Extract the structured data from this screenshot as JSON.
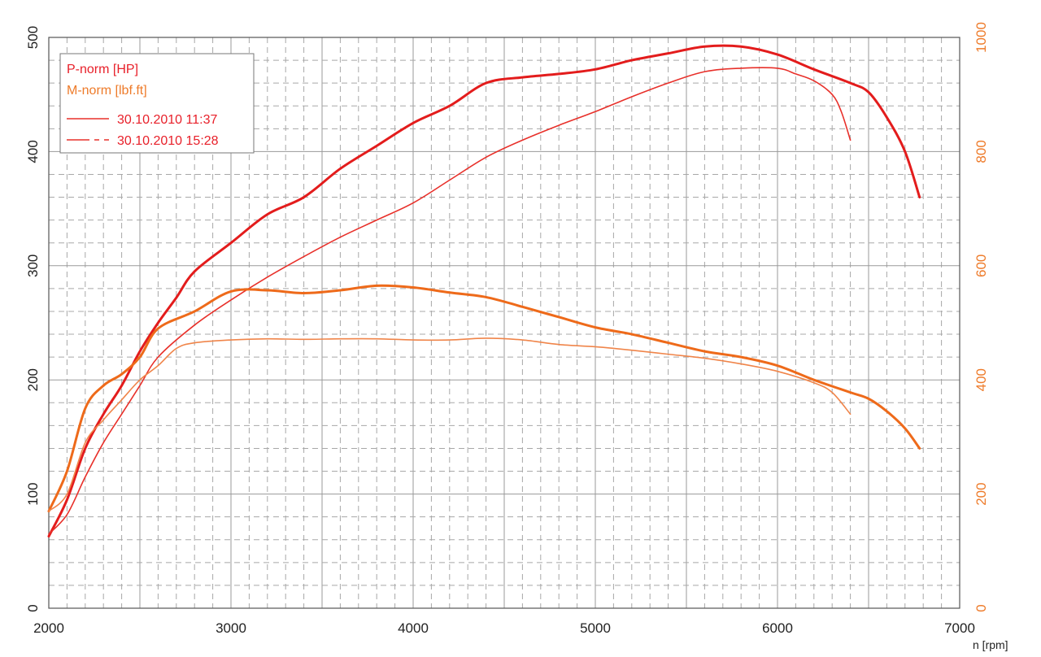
{
  "chart_data": {
    "type": "line",
    "x_unit_label": "n [rpm]",
    "xlim": [
      2000,
      7000
    ],
    "x_ticks": [
      2000,
      3000,
      4000,
      5000,
      6000,
      7000
    ],
    "y_left": {
      "ylim": [
        0,
        500
      ],
      "ticks": [
        0,
        100,
        200,
        300,
        400,
        500
      ]
    },
    "y_right": {
      "ylim": [
        0,
        1000
      ],
      "ticks": [
        0,
        200,
        400,
        600,
        800,
        1000
      ]
    },
    "grid": true,
    "legend": {
      "placement": "top-left",
      "quantities": [
        {
          "label": "P-norm [HP]",
          "color": "#e8202a"
        },
        {
          "label": "M-norm [lbf.ft]",
          "color": "#ee7b2a"
        }
      ],
      "runs": [
        {
          "label": "30.10.2010 11:37",
          "dash": "solid"
        },
        {
          "label": "30.10.2010 15:28",
          "dash": "dashed"
        }
      ]
    },
    "series": [
      {
        "quantity": "P-norm [HP]",
        "run": "30.10.2010 15:28",
        "axis": "left",
        "color": "#e31c1c",
        "width": 3,
        "points": [
          [
            2000,
            63
          ],
          [
            2100,
            95
          ],
          [
            2200,
            140
          ],
          [
            2300,
            170
          ],
          [
            2400,
            195
          ],
          [
            2500,
            225
          ],
          [
            2600,
            250
          ],
          [
            2700,
            272
          ],
          [
            2800,
            295
          ],
          [
            3000,
            320
          ],
          [
            3200,
            345
          ],
          [
            3400,
            360
          ],
          [
            3600,
            385
          ],
          [
            3800,
            405
          ],
          [
            4000,
            425
          ],
          [
            4200,
            440
          ],
          [
            4400,
            460
          ],
          [
            4600,
            465
          ],
          [
            4800,
            468
          ],
          [
            5000,
            472
          ],
          [
            5200,
            480
          ],
          [
            5400,
            486
          ],
          [
            5600,
            492
          ],
          [
            5800,
            492
          ],
          [
            6000,
            485
          ],
          [
            6200,
            472
          ],
          [
            6400,
            460
          ],
          [
            6500,
            452
          ],
          [
            6600,
            430
          ],
          [
            6700,
            400
          ],
          [
            6780,
            360
          ]
        ]
      },
      {
        "quantity": "P-norm [HP]",
        "run": "30.10.2010 11:37",
        "axis": "left",
        "color": "#e8302a",
        "width": 1.6,
        "points": [
          [
            2000,
            65
          ],
          [
            2100,
            82
          ],
          [
            2200,
            115
          ],
          [
            2300,
            145
          ],
          [
            2400,
            170
          ],
          [
            2500,
            195
          ],
          [
            2600,
            220
          ],
          [
            2800,
            248
          ],
          [
            3000,
            270
          ],
          [
            3200,
            290
          ],
          [
            3400,
            308
          ],
          [
            3600,
            325
          ],
          [
            3800,
            340
          ],
          [
            4000,
            355
          ],
          [
            4200,
            375
          ],
          [
            4400,
            395
          ],
          [
            4600,
            410
          ],
          [
            4800,
            423
          ],
          [
            5000,
            435
          ],
          [
            5200,
            448
          ],
          [
            5400,
            460
          ],
          [
            5600,
            470
          ],
          [
            5800,
            473
          ],
          [
            6000,
            473
          ],
          [
            6100,
            468
          ],
          [
            6200,
            462
          ],
          [
            6300,
            450
          ],
          [
            6350,
            435
          ],
          [
            6400,
            410
          ]
        ]
      },
      {
        "quantity": "M-norm [lbf.ft]",
        "run": "30.10.2010 15:28",
        "axis": "right",
        "color": "#ee6a1a",
        "width": 3,
        "points": [
          [
            2000,
            170
          ],
          [
            2100,
            240
          ],
          [
            2200,
            350
          ],
          [
            2300,
            390
          ],
          [
            2400,
            410
          ],
          [
            2500,
            440
          ],
          [
            2600,
            490
          ],
          [
            2800,
            520
          ],
          [
            3000,
            555
          ],
          [
            3200,
            557
          ],
          [
            3400,
            552
          ],
          [
            3600,
            557
          ],
          [
            3800,
            565
          ],
          [
            4000,
            562
          ],
          [
            4200,
            553
          ],
          [
            4400,
            545
          ],
          [
            4600,
            528
          ],
          [
            4800,
            510
          ],
          [
            5000,
            492
          ],
          [
            5200,
            480
          ],
          [
            5400,
            465
          ],
          [
            5600,
            450
          ],
          [
            5800,
            440
          ],
          [
            6000,
            425
          ],
          [
            6200,
            400
          ],
          [
            6400,
            378
          ],
          [
            6500,
            367
          ],
          [
            6600,
            345
          ],
          [
            6700,
            315
          ],
          [
            6780,
            280
          ]
        ]
      },
      {
        "quantity": "M-norm [lbf.ft]",
        "run": "30.10.2010 11:37",
        "axis": "right",
        "color": "#f0854a",
        "width": 1.6,
        "points": [
          [
            2000,
            170
          ],
          [
            2100,
            200
          ],
          [
            2200,
            290
          ],
          [
            2300,
            330
          ],
          [
            2400,
            365
          ],
          [
            2500,
            400
          ],
          [
            2600,
            425
          ],
          [
            2700,
            455
          ],
          [
            2800,
            465
          ],
          [
            3000,
            470
          ],
          [
            3200,
            472
          ],
          [
            3400,
            471
          ],
          [
            3600,
            472
          ],
          [
            3800,
            472
          ],
          [
            4000,
            470
          ],
          [
            4200,
            470
          ],
          [
            4400,
            473
          ],
          [
            4600,
            470
          ],
          [
            4800,
            462
          ],
          [
            5000,
            458
          ],
          [
            5200,
            452
          ],
          [
            5400,
            445
          ],
          [
            5600,
            438
          ],
          [
            5800,
            428
          ],
          [
            6000,
            415
          ],
          [
            6200,
            395
          ],
          [
            6300,
            378
          ],
          [
            6400,
            340
          ]
        ]
      }
    ]
  }
}
